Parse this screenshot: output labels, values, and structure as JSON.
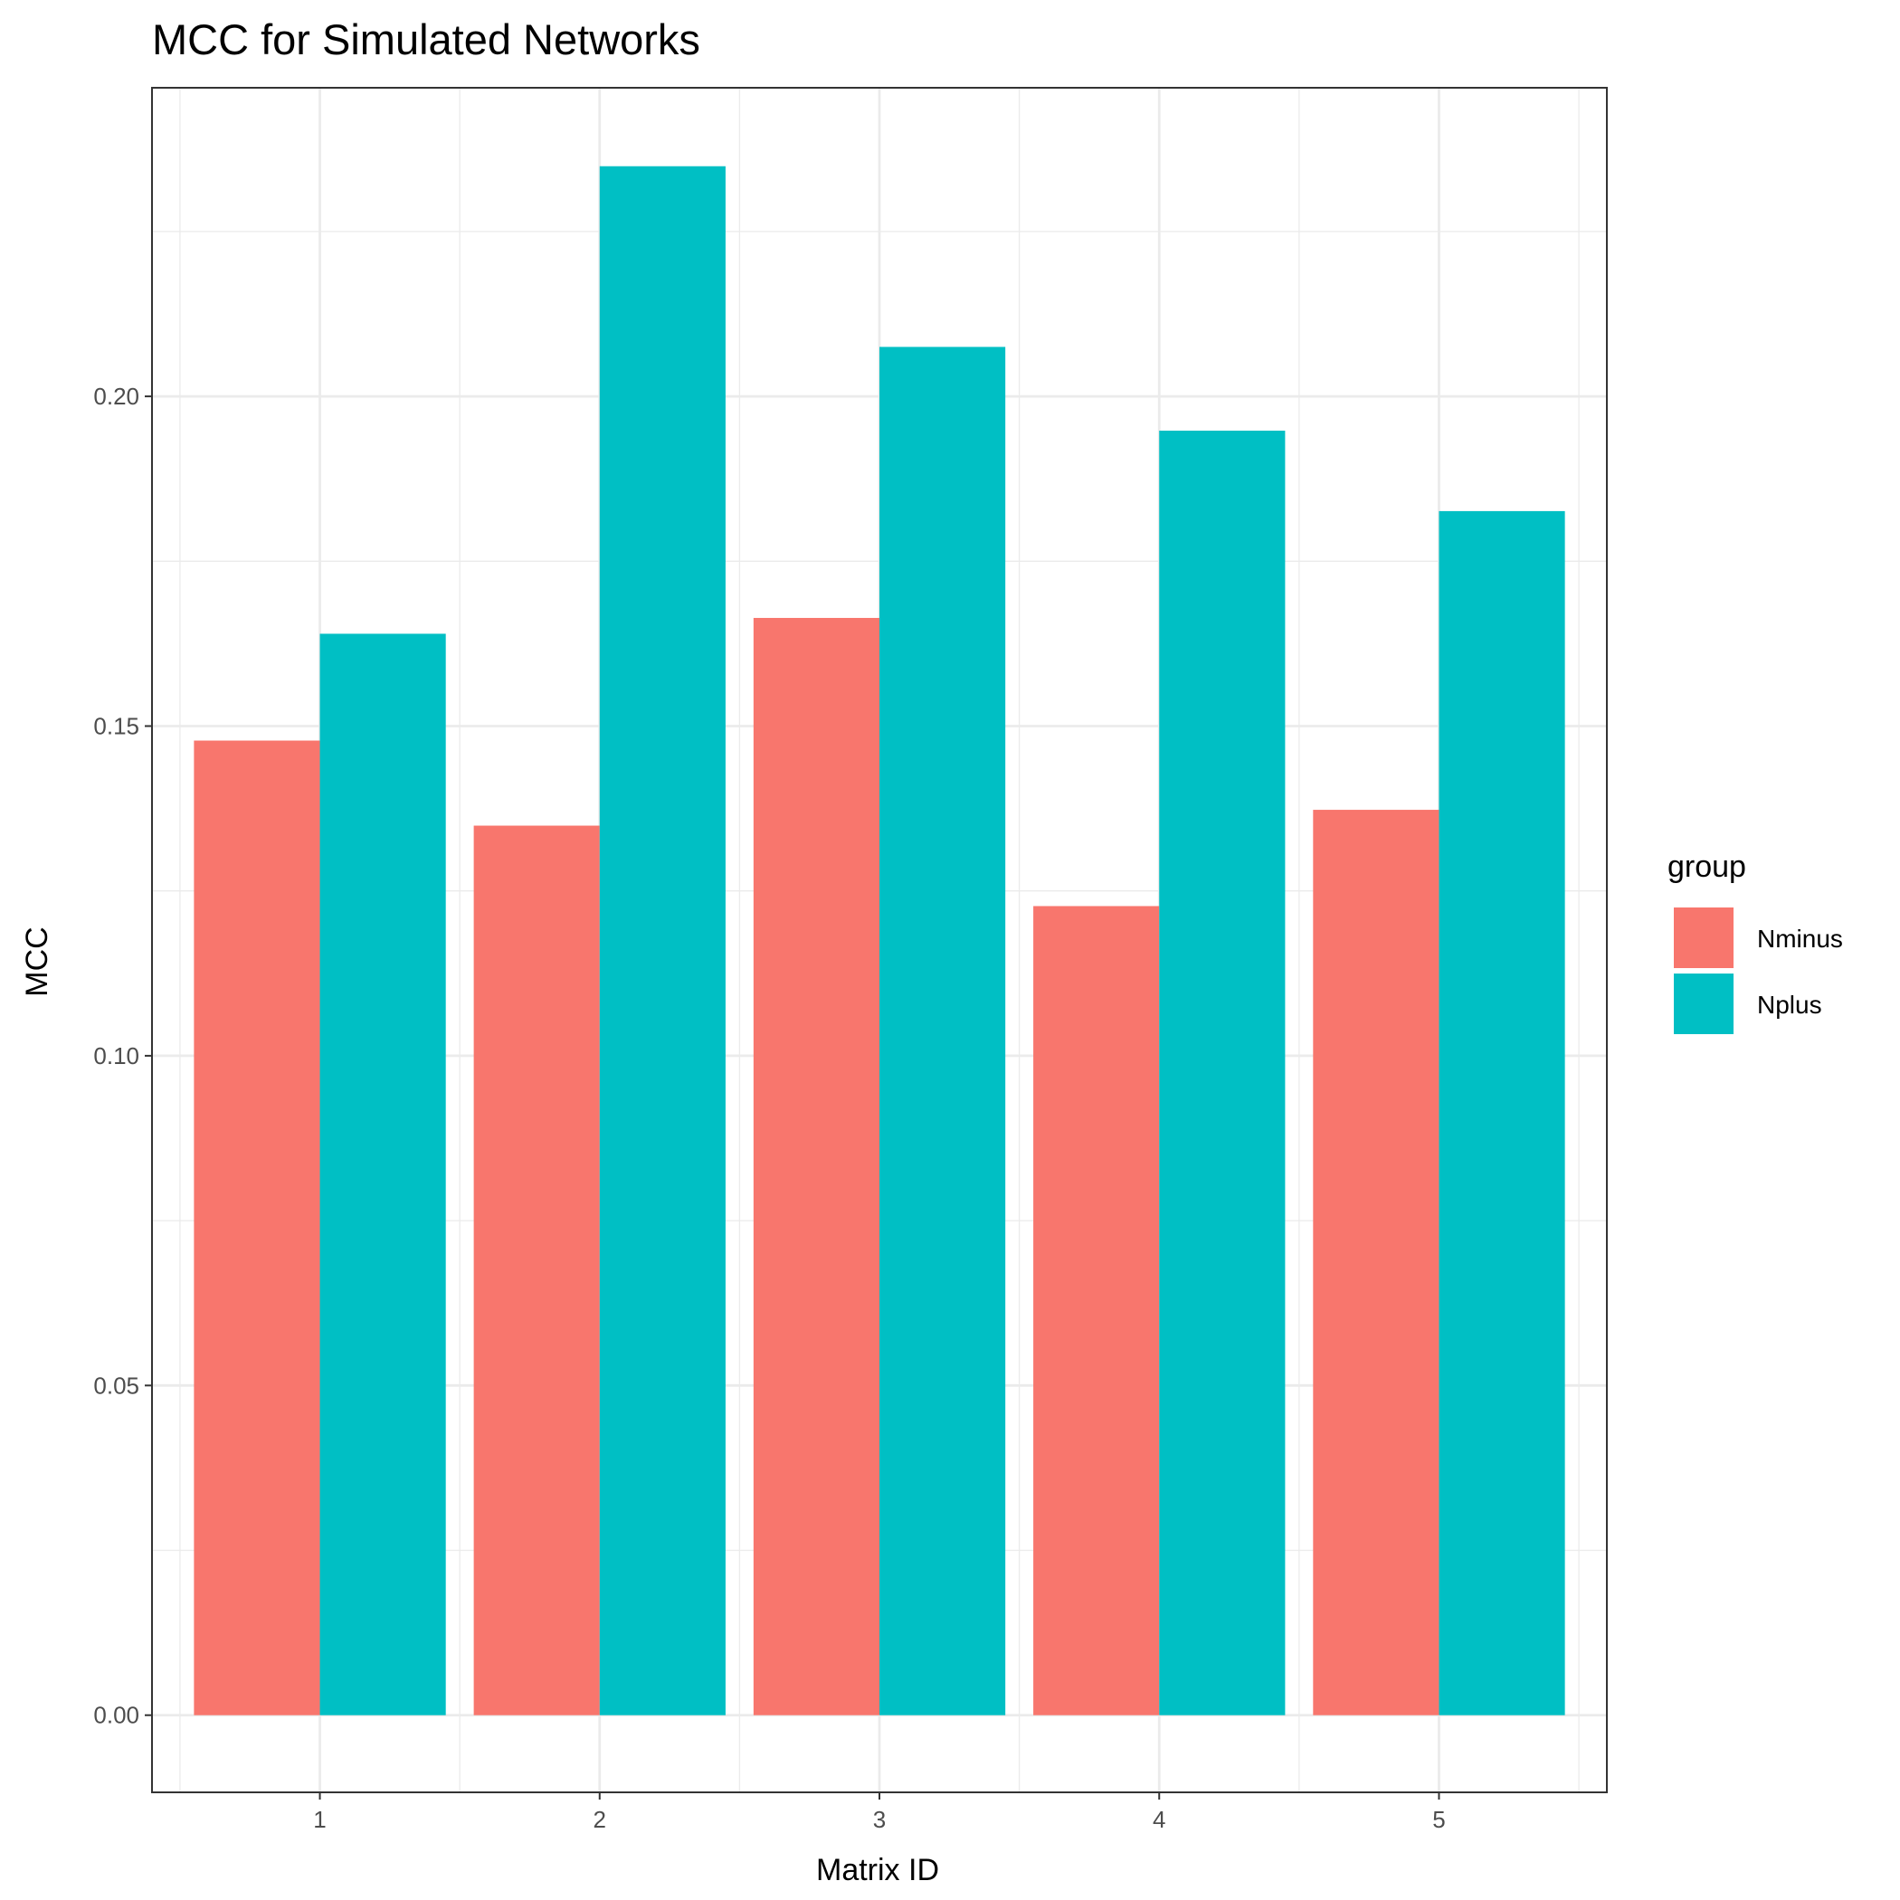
{
  "chart_data": {
    "type": "bar",
    "title": "MCC for Simulated Networks",
    "xlabel": "Matrix ID",
    "ylabel": "MCC",
    "categories": [
      "1",
      "2",
      "3",
      "4",
      "5"
    ],
    "series": [
      {
        "name": "Nminus",
        "values": [
          0.1478,
          0.1349,
          0.1664,
          0.1227,
          0.1373
        ],
        "color": "#F8766D"
      },
      {
        "name": "Nplus",
        "values": [
          0.164,
          0.2349,
          0.2075,
          0.1948,
          0.1826
        ],
        "color": "#00BFC4"
      }
    ],
    "ylim": [
      -0.0117,
      0.2468
    ],
    "yticks": [
      0.0,
      0.05,
      0.1,
      0.15,
      0.2
    ],
    "ytick_labels": [
      "0.00",
      "0.05",
      "0.10",
      "0.15",
      "0.20"
    ],
    "legend": {
      "title": "group",
      "position": "right"
    },
    "grid": true,
    "theme": "bw"
  }
}
